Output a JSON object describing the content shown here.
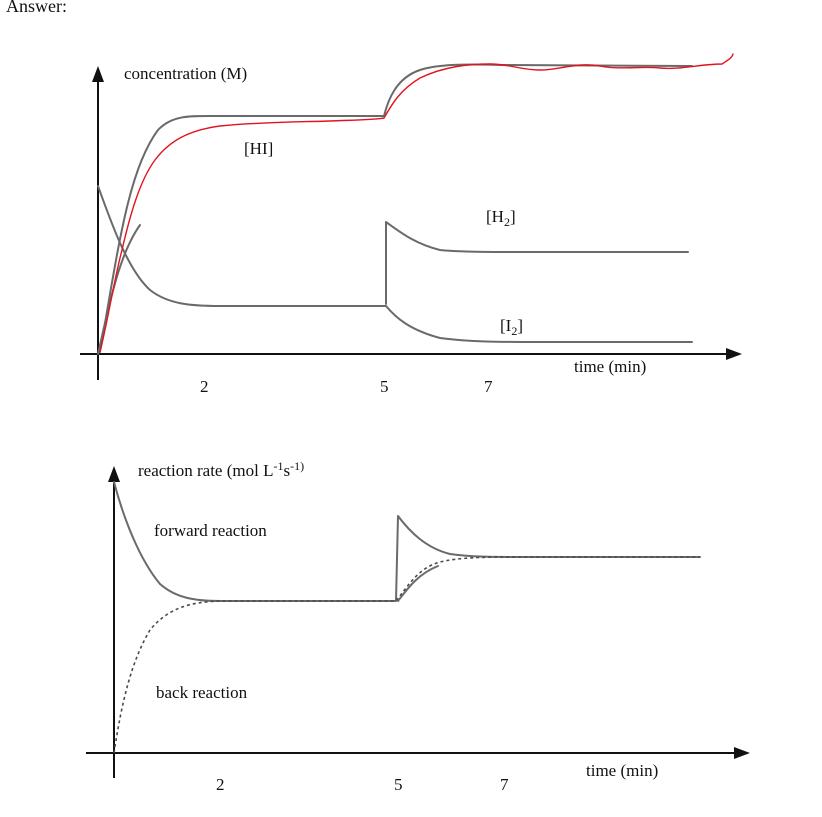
{
  "header": {
    "title": "Answer:"
  },
  "top_graph": {
    "y_label": "concentration (M)",
    "x_label": "time (min)",
    "ticks": [
      "2",
      "5",
      "7"
    ],
    "label_hi": "[HI]",
    "label_h2_main": "[H",
    "label_h2_sub": "2",
    "label_h2_close": "]",
    "label_i2_main": "[I",
    "label_i2_sub": "2",
    "label_i2_close": "]"
  },
  "bottom_graph": {
    "y_label_main": "reaction rate (mol L",
    "y_label_sup1": "-1",
    "y_label_mid": "s",
    "y_label_sup2": "-1)",
    "x_label": "time (min)",
    "ticks": [
      "2",
      "5",
      "7"
    ],
    "label_forward": "forward reaction",
    "label_back": "back reaction"
  },
  "colors": {
    "ink": "#111111",
    "curve": "#6a6a6a",
    "annotation": "#e0141c"
  }
}
